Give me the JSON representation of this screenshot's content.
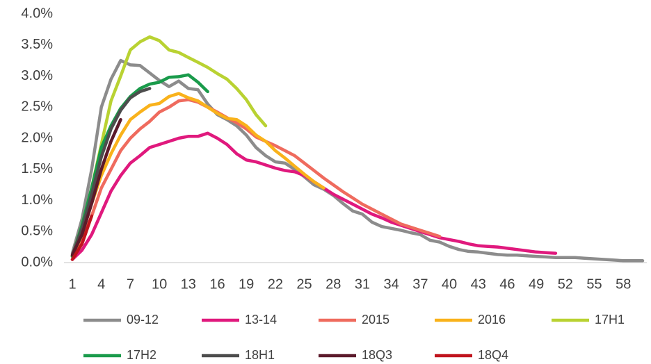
{
  "chart_data": {
    "type": "line",
    "x": [
      1,
      2,
      3,
      4,
      5,
      6,
      7,
      8,
      9,
      10,
      11,
      12,
      13,
      14,
      15,
      16,
      17,
      18,
      19,
      20,
      21,
      22,
      23,
      24,
      25,
      26,
      27,
      28,
      29,
      30,
      31,
      32,
      33,
      34,
      35,
      36,
      37,
      38,
      39,
      40,
      41,
      42,
      43,
      44,
      45,
      46,
      47,
      48,
      49,
      50,
      51,
      52,
      53,
      54,
      55,
      56,
      57,
      58,
      59,
      60
    ],
    "xlim": [
      1,
      60
    ],
    "xticks": [
      1,
      4,
      7,
      10,
      13,
      16,
      19,
      22,
      25,
      28,
      31,
      34,
      37,
      40,
      43,
      46,
      49,
      52,
      55,
      58
    ],
    "ylim": [
      0,
      4
    ],
    "yticks": [
      {
        "value": 0,
        "label": "0.0%"
      },
      {
        "value": 0.5,
        "label": "0.5%"
      },
      {
        "value": 1,
        "label": "1.0%"
      },
      {
        "value": 1.5,
        "label": "1.5%"
      },
      {
        "value": 2,
        "label": "2.0%"
      },
      {
        "value": 2.5,
        "label": "2.5%"
      },
      {
        "value": 3,
        "label": "3.0%"
      },
      {
        "value": 3.5,
        "label": "3.5%"
      },
      {
        "value": 4,
        "label": "4.0%"
      }
    ],
    "grid": false,
    "legend": "bottom",
    "series": [
      {
        "name": "09-12",
        "color": "#8c8c8c",
        "values": [
          0.15,
          0.7,
          1.5,
          2.5,
          2.95,
          3.25,
          3.18,
          3.17,
          3.05,
          2.93,
          2.83,
          2.92,
          2.8,
          2.78,
          2.55,
          2.38,
          2.3,
          2.2,
          2.05,
          1.85,
          1.72,
          1.62,
          1.6,
          1.5,
          1.38,
          1.25,
          1.18,
          1.08,
          0.95,
          0.83,
          0.78,
          0.65,
          0.58,
          0.55,
          0.52,
          0.48,
          0.45,
          0.36,
          0.33,
          0.26,
          0.21,
          0.18,
          0.17,
          0.15,
          0.13,
          0.12,
          0.12,
          0.11,
          0.1,
          0.09,
          0.08,
          0.08,
          0.08,
          0.07,
          0.06,
          0.05,
          0.04,
          0.03,
          0.03,
          0.03
        ]
      },
      {
        "name": "13-14",
        "color": "#e0197d",
        "values": [
          0.05,
          0.2,
          0.45,
          0.8,
          1.15,
          1.4,
          1.6,
          1.72,
          1.85,
          1.9,
          1.95,
          2.0,
          2.03,
          2.03,
          2.08,
          2.0,
          1.9,
          1.75,
          1.65,
          1.62,
          1.57,
          1.52,
          1.48,
          1.46,
          1.4,
          1.3,
          1.2,
          1.1,
          1.02,
          0.94,
          0.86,
          0.78,
          0.72,
          0.65,
          0.6,
          0.55,
          0.5,
          0.45,
          0.4,
          0.37,
          0.34,
          0.3,
          0.27,
          0.26,
          0.25,
          0.23,
          0.21,
          0.19,
          0.17,
          0.16,
          0.15,
          null,
          null,
          null,
          null,
          null,
          null,
          null,
          null,
          null
        ]
      },
      {
        "name": "2015",
        "color": "#ef6b5e",
        "values": [
          0.1,
          0.35,
          0.75,
          1.2,
          1.5,
          1.8,
          2.0,
          2.15,
          2.27,
          2.42,
          2.5,
          2.6,
          2.62,
          2.58,
          2.5,
          2.42,
          2.33,
          2.25,
          2.15,
          2.02,
          1.95,
          1.88,
          1.8,
          1.72,
          1.6,
          1.48,
          1.36,
          1.25,
          1.14,
          1.04,
          0.94,
          0.86,
          0.78,
          0.7,
          0.62,
          0.57,
          0.52,
          0.47,
          0.42,
          null,
          null,
          null,
          null,
          null,
          null,
          null,
          null,
          null,
          null,
          null,
          null,
          null,
          null,
          null,
          null,
          null,
          null,
          null,
          null,
          null
        ]
      },
      {
        "name": "2016",
        "color": "#f9b21b",
        "values": [
          0.1,
          0.45,
          0.95,
          1.4,
          1.75,
          2.05,
          2.3,
          2.42,
          2.53,
          2.56,
          2.67,
          2.72,
          2.65,
          2.6,
          2.5,
          2.4,
          2.32,
          2.3,
          2.2,
          2.05,
          1.95,
          1.8,
          1.68,
          1.55,
          1.42,
          1.3,
          1.2,
          null,
          null,
          null,
          null,
          null,
          null,
          null,
          null,
          null,
          null,
          null,
          null,
          null,
          null,
          null,
          null,
          null,
          null,
          null,
          null,
          null,
          null,
          null,
          null,
          null,
          null,
          null,
          null,
          null,
          null,
          null,
          null,
          null
        ]
      },
      {
        "name": "17H1",
        "color": "#b9d232",
        "values": [
          0.1,
          0.6,
          1.2,
          1.9,
          2.6,
          3.0,
          3.42,
          3.55,
          3.63,
          3.57,
          3.42,
          3.38,
          3.3,
          3.22,
          3.14,
          3.04,
          2.95,
          2.8,
          2.62,
          2.38,
          2.2,
          null,
          null,
          null,
          null,
          null,
          null,
          null,
          null,
          null,
          null,
          null,
          null,
          null,
          null,
          null,
          null,
          null,
          null,
          null,
          null,
          null,
          null,
          null,
          null,
          null,
          null,
          null,
          null,
          null,
          null,
          null,
          null,
          null,
          null,
          null,
          null,
          null,
          null,
          null
        ]
      },
      {
        "name": "17H2",
        "color": "#1a9b4b",
        "values": [
          0.1,
          0.6,
          1.2,
          1.85,
          2.2,
          2.48,
          2.67,
          2.8,
          2.87,
          2.9,
          2.98,
          2.99,
          3.02,
          2.9,
          2.75,
          null,
          null,
          null,
          null,
          null,
          null,
          null,
          null,
          null,
          null,
          null,
          null,
          null,
          null,
          null,
          null,
          null,
          null,
          null,
          null,
          null,
          null,
          null,
          null,
          null,
          null,
          null,
          null,
          null,
          null,
          null,
          null,
          null,
          null,
          null,
          null,
          null,
          null,
          null,
          null,
          null,
          null,
          null,
          null,
          null
        ]
      },
      {
        "name": "18H1",
        "color": "#4d4d4d",
        "values": [
          0.12,
          0.55,
          1.1,
          1.7,
          2.15,
          2.45,
          2.65,
          2.75,
          2.8,
          null,
          null,
          null,
          null,
          null,
          null,
          null,
          null,
          null,
          null,
          null,
          null,
          null,
          null,
          null,
          null,
          null,
          null,
          null,
          null,
          null,
          null,
          null,
          null,
          null,
          null,
          null,
          null,
          null,
          null,
          null,
          null,
          null,
          null,
          null,
          null,
          null,
          null,
          null,
          null,
          null,
          null,
          null,
          null,
          null,
          null,
          null,
          null,
          null,
          null,
          null
        ]
      },
      {
        "name": "18Q3",
        "color": "#5c1a2b",
        "values": [
          0.12,
          0.45,
          0.95,
          1.5,
          1.95,
          2.3,
          null,
          null,
          null,
          null,
          null,
          null,
          null,
          null,
          null,
          null,
          null,
          null,
          null,
          null,
          null,
          null,
          null,
          null,
          null,
          null,
          null,
          null,
          null,
          null,
          null,
          null,
          null,
          null,
          null,
          null,
          null,
          null,
          null,
          null,
          null,
          null,
          null,
          null,
          null,
          null,
          null,
          null,
          null,
          null,
          null,
          null,
          null,
          null,
          null,
          null,
          null,
          null,
          null,
          null
        ]
      },
      {
        "name": "18Q4",
        "color": "#c0141d",
        "values": [
          0.05,
          0.3,
          0.75,
          null,
          null,
          null,
          null,
          null,
          null,
          null,
          null,
          null,
          null,
          null,
          null,
          null,
          null,
          null,
          null,
          null,
          null,
          null,
          null,
          null,
          null,
          null,
          null,
          null,
          null,
          null,
          null,
          null,
          null,
          null,
          null,
          null,
          null,
          null,
          null,
          null,
          null,
          null,
          null,
          null,
          null,
          null,
          null,
          null,
          null,
          null,
          null,
          null,
          null,
          null,
          null,
          null,
          null,
          null,
          null,
          null
        ]
      }
    ]
  }
}
